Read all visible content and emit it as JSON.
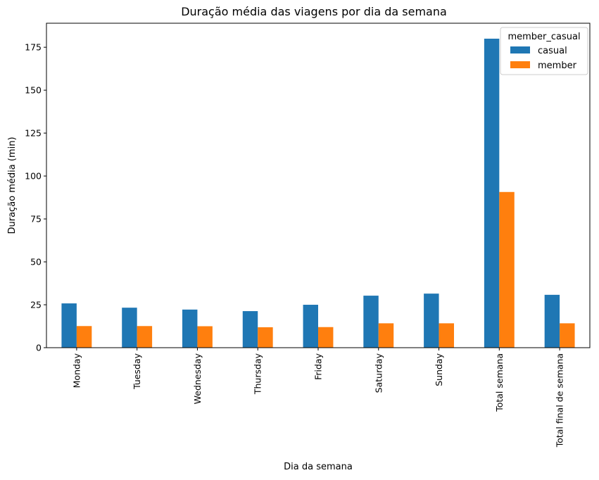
{
  "chart_data": {
    "type": "bar",
    "title": "Duração média das viagens por dia da semana",
    "xlabel": "Dia da semana",
    "ylabel": "Duração média (min)",
    "categories": [
      "Monday",
      "Tuesday",
      "Wednesday",
      "Thursday",
      "Friday",
      "Saturday",
      "Sunday",
      "Total semana",
      "Total final de semana"
    ],
    "series": [
      {
        "name": "casual",
        "color": "#1f77b4",
        "values": [
          25.8,
          23.3,
          22.2,
          21.3,
          25.0,
          30.3,
          31.5,
          180.0,
          30.8
        ]
      },
      {
        "name": "member",
        "color": "#ff7f0e",
        "values": [
          12.6,
          12.6,
          12.5,
          11.9,
          12.0,
          14.2,
          14.2,
          90.7,
          14.2
        ]
      }
    ],
    "ylim": [
      0,
      189
    ],
    "yticks": [
      0,
      25,
      50,
      75,
      100,
      125,
      150,
      175
    ],
    "grid": false,
    "legend": {
      "title": "member_casual",
      "position": "top-right"
    }
  }
}
